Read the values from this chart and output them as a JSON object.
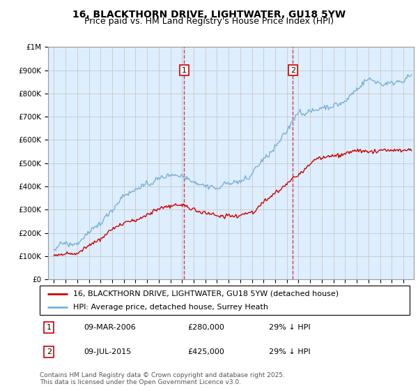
{
  "title": "16, BLACKTHORN DRIVE, LIGHTWATER, GU18 5YW",
  "subtitle": "Price paid vs. HM Land Registry's House Price Index (HPI)",
  "legend_line1": "16, BLACKTHORN DRIVE, LIGHTWATER, GU18 5YW (detached house)",
  "legend_line2": "HPI: Average price, detached house, Surrey Heath",
  "transactions": [
    {
      "num": "1",
      "date": "09-MAR-2006",
      "price": "£280,000",
      "hpi": "29% ↓ HPI"
    },
    {
      "num": "2",
      "date": "09-JUL-2015",
      "price": "£425,000",
      "hpi": "29% ↓ HPI"
    }
  ],
  "footnote1": "Contains HM Land Registry data © Crown copyright and database right 2025.",
  "footnote2": "This data is licensed under the Open Government Licence v3.0.",
  "ylim": [
    0,
    1000000
  ],
  "yticks": [
    0,
    100000,
    200000,
    300000,
    400000,
    500000,
    600000,
    700000,
    800000,
    900000,
    1000000
  ],
  "ytick_labels": [
    "£0",
    "£100K",
    "£200K",
    "£300K",
    "£400K",
    "£500K",
    "£600K",
    "£700K",
    "£800K",
    "£900K",
    "£1M"
  ],
  "vline_year1": 2006.19,
  "vline_year2": 2015.52,
  "red_color": "#cc0000",
  "blue_color": "#7ab0d4",
  "background_color": "#ddeeff",
  "plot_bg_color": "#ffffff",
  "grid_color": "#cccccc",
  "title_fontsize": 10,
  "subtitle_fontsize": 9,
  "tick_fontsize": 7.5,
  "legend_fontsize": 8,
  "table_fontsize": 8,
  "footnote_fontsize": 6.5
}
